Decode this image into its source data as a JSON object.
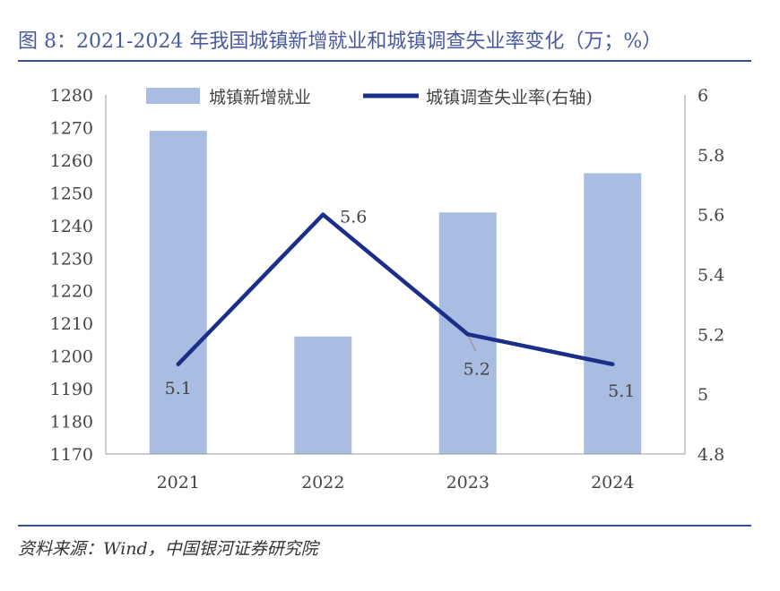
{
  "figure": {
    "title": "图 8：2021-2024 年我国城镇新增就业和城镇调查失业率变化（万；%）",
    "source": "资料来源：Wind，中国银河证券研究院"
  },
  "colors": {
    "bar": "#a9bde3",
    "line": "#1b2f8a",
    "rule": "#3a4f96",
    "title": "#4a5aa0",
    "axis": "#999999"
  },
  "chart_data": {
    "type": "bar",
    "categories": [
      "2021",
      "2022",
      "2023",
      "2024"
    ],
    "series": [
      {
        "name": "城镇新增就业",
        "type": "bar",
        "axis": "left",
        "values": [
          1269,
          1206,
          1244,
          1256
        ]
      },
      {
        "name": "城镇调查失业率(右轴)",
        "type": "line",
        "axis": "right",
        "values": [
          5.1,
          5.6,
          5.2,
          5.1
        ],
        "data_labels": [
          "5.1",
          "5.6",
          "5.2",
          "5.1"
        ]
      }
    ],
    "y_left": {
      "min": 1170,
      "max": 1280,
      "ticks": [
        "1280",
        "1270",
        "1260",
        "1250",
        "1240",
        "1230",
        "1220",
        "1210",
        "1200",
        "1190",
        "1180",
        "1170"
      ]
    },
    "y_right": {
      "min": 4.8,
      "max": 6,
      "ticks": [
        "6",
        "5.8",
        "5.6",
        "5.4",
        "5.2",
        "5",
        "4.8"
      ]
    },
    "legend": "top",
    "grid": false
  }
}
